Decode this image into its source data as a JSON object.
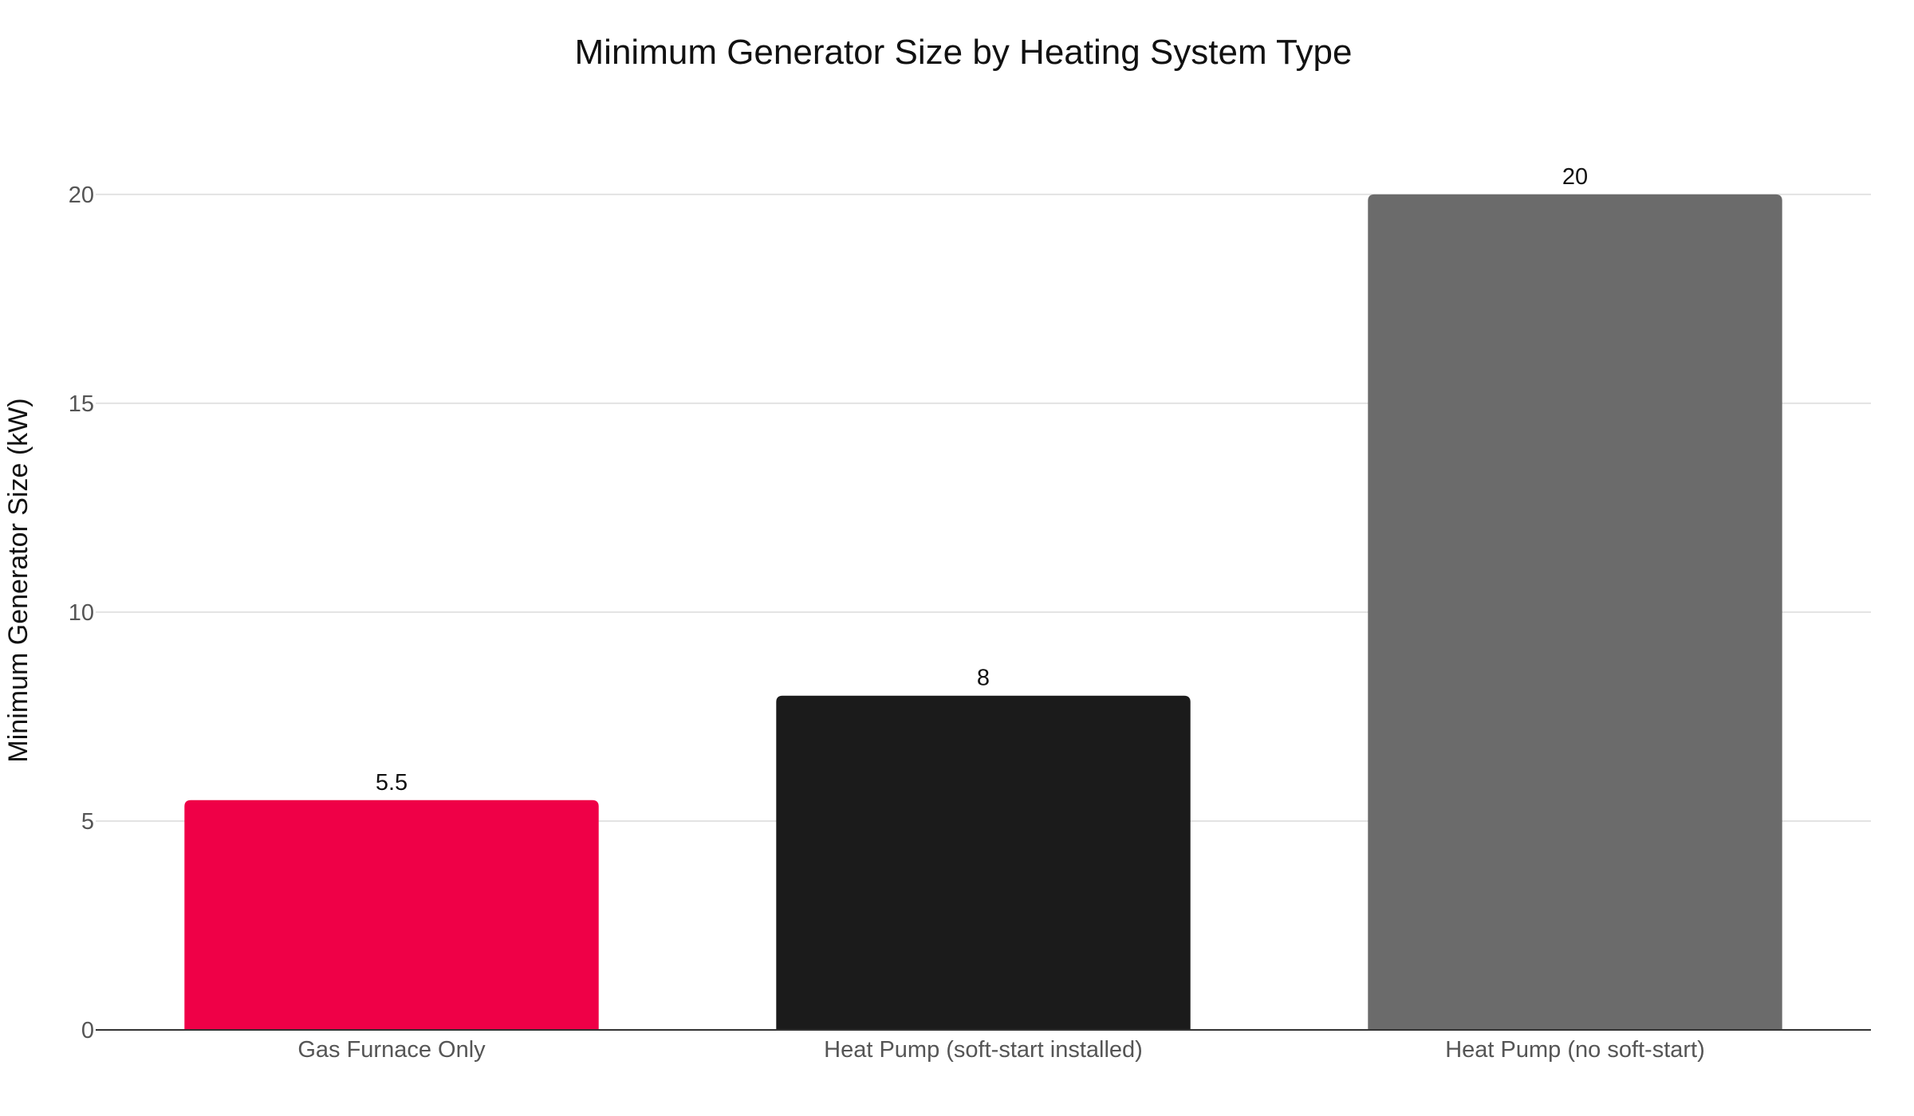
{
  "chart_data": {
    "type": "bar",
    "title": "Minimum Generator Size by Heating System Type",
    "xlabel": "",
    "ylabel": "Minimum Generator Size (kW)",
    "categories": [
      "Gas Furnace Only",
      "Heat Pump (soft-start installed)",
      "Heat Pump (no soft-start)"
    ],
    "values": [
      5.5,
      8,
      20
    ],
    "value_labels": [
      "5.5",
      "8",
      "20"
    ],
    "colors": [
      "#ef0047",
      "#1b1b1b",
      "#6b6b6b"
    ],
    "ylim": [
      0,
      21.6
    ],
    "yticks": [
      0,
      5,
      10,
      15,
      20
    ],
    "grid": true,
    "legend": "none"
  }
}
